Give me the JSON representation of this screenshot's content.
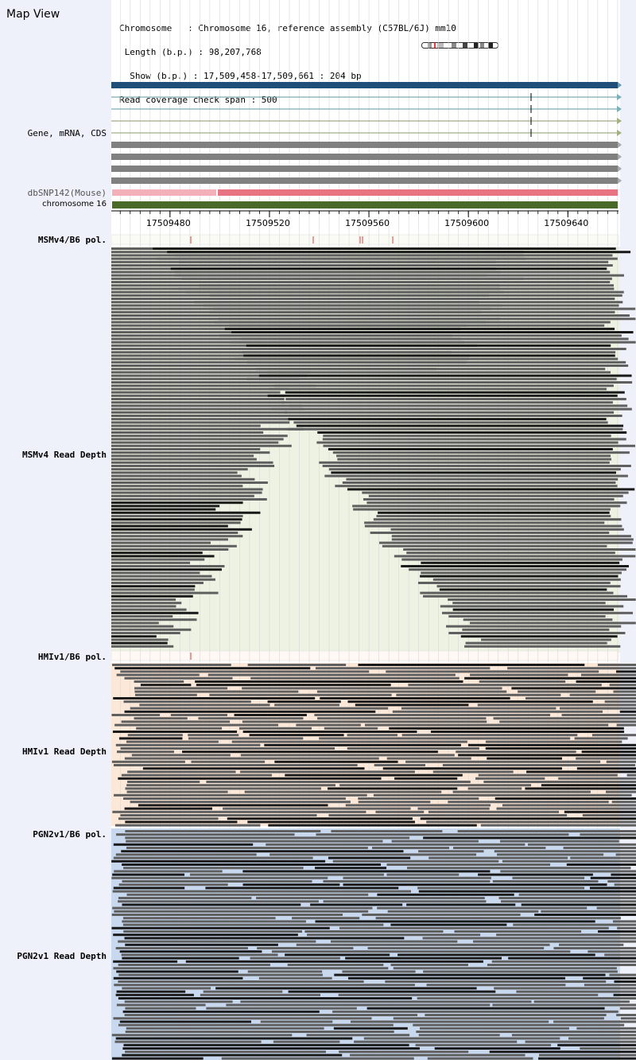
{
  "page": {
    "title": "Map View"
  },
  "info": {
    "chromosome_line": "Chromosome   : Chromosome 16, reference assembly (C57BL/6J) mm10",
    "length_line": " Length (b.p.) : 98,207,768",
    "show_line": "  Show (b.p.) : 17,509,458-17,509,661 : 204 bp",
    "coverage_line": "Read coverage check span : 500"
  },
  "tracks": {
    "gene": "Gene, mRNA, CDS",
    "dbsnp": "dbSNP142(Mouse)",
    "chromosome": "chromosome 16",
    "msmv4_pol": "MSMv4/B6 pol.",
    "msmv4_depth": "MSMv4 Read Depth",
    "hmiv1_pol": "HMIv1/B6 pol.",
    "hmiv1_depth": "HMIv1 Read Depth",
    "pgn2v1_pol": "PGN2v1/B6 pol.",
    "pgn2v1_depth": "PGN2v1 Read Depth"
  },
  "ruler": {
    "ticks": [
      {
        "pos": 17509480,
        "label": "17509480"
      },
      {
        "pos": 17509520,
        "label": "17509520"
      },
      {
        "pos": 17509560,
        "label": "17509560"
      },
      {
        "pos": 17509600,
        "label": "17509600"
      },
      {
        "pos": 17509640,
        "label": "17509640"
      }
    ],
    "range_start": 17509458,
    "range_end": 17509661
  },
  "colors": {
    "gene_main": "#1f4e79",
    "mrna_teal": "#5a9aa0",
    "cds_olive": "#8a9a6a",
    "gray_feature": "#808080",
    "dbsnp_light": "#f4b0b8",
    "dbsnp_main": "#e87482",
    "chromosome_bar": "#4a6a2a",
    "msm_bg": "#eef2e2",
    "hmi_bg": "#fce8d8",
    "pgn_bg": "#c8d8ee",
    "read_gray": "#5f5f5f",
    "read_dark": "#1a1a1a",
    "snp_mark": "#d04040"
  }
}
